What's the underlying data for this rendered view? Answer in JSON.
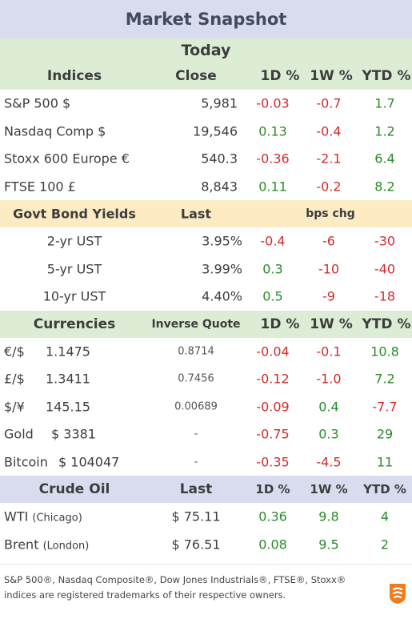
{
  "title": "Market Snapshot",
  "today": "Today",
  "indices": {
    "headers": {
      "name": "Indices",
      "close": "Close",
      "d1": "1D %",
      "w1": "1W %",
      "ytd": "YTD %"
    },
    "rows": [
      {
        "name": "S&P 500  $",
        "close": "5,981",
        "d1": "-0.03",
        "w1": "-0.7",
        "ytd": "1.7"
      },
      {
        "name": "Nasdaq Comp  $",
        "close": "19,546",
        "d1": "0.13",
        "w1": "-0.4",
        "ytd": "1.2"
      },
      {
        "name": "Stoxx 600 Europe  €",
        "close": "540.3",
        "d1": "-0.36",
        "w1": "-2.1",
        "ytd": "6.4"
      },
      {
        "name": "FTSE 100  £",
        "close": "8,843",
        "d1": "0.11",
        "w1": "-0.2",
        "ytd": "8.2"
      }
    ]
  },
  "bonds": {
    "headers": {
      "name": "Govt Bond Yields",
      "last": "Last",
      "chg": "bps chg"
    },
    "rows": [
      {
        "name": "2-yr UST",
        "last": "3.95%",
        "d1": "-0.4",
        "w1": "-6",
        "ytd": "-30"
      },
      {
        "name": "5-yr UST",
        "last": "3.99%",
        "d1": "0.3",
        "w1": "-10",
        "ytd": "-40"
      },
      {
        "name": "10-yr UST",
        "last": "4.40%",
        "d1": "0.5",
        "w1": "-9",
        "ytd": "-18"
      }
    ]
  },
  "currencies": {
    "headers": {
      "name": "Currencies",
      "inverse": "Inverse Quote",
      "d1": "1D %",
      "w1": "1W %",
      "ytd": "YTD %"
    },
    "rows": [
      {
        "name": "€/$",
        "value": "1.1475",
        "inverse": "0.8714",
        "d1": "-0.04",
        "w1": "-0.1",
        "ytd": "10.8"
      },
      {
        "name": "£/$",
        "value": "1.3411",
        "inverse": "0.7456",
        "d1": "-0.12",
        "w1": "-1.0",
        "ytd": "7.2"
      },
      {
        "name": "$/¥",
        "value": "145.15",
        "inverse": "0.00689",
        "d1": "-0.09",
        "w1": "0.4",
        "ytd": "-7.7"
      },
      {
        "name": "Gold",
        "value": "$ 3381",
        "inverse": "-",
        "d1": "-0.75",
        "w1": "0.3",
        "ytd": "29"
      },
      {
        "name": "Bitcoin",
        "value": "$ 104047",
        "inverse": "-",
        "d1": "-0.35",
        "w1": "-4.5",
        "ytd": "11"
      }
    ]
  },
  "oil": {
    "headers": {
      "name": "Crude Oil",
      "last": "Last",
      "d1": "1D %",
      "w1": "1W %",
      "ytd": "YTD %"
    },
    "rows": [
      {
        "name": "WTI",
        "place": "(Chicago)",
        "last": "$ 75.11",
        "d1": "0.36",
        "w1": "9.8",
        "ytd": "4"
      },
      {
        "name": "Brent",
        "place": "(London)",
        "last": "$ 76.51",
        "d1": "0.08",
        "w1": "9.5",
        "ytd": "2"
      }
    ]
  },
  "footer": {
    "line1": "S&P 500®, Nasdaq Composite®, Dow Jones Industrials®, FTSE®, Stoxx®",
    "line2": "indices are registered trademarks of their respective owners."
  },
  "colors": {
    "negative": "#d42a2a",
    "positive": "#2b8a2b",
    "logo": "#f07c1b"
  }
}
